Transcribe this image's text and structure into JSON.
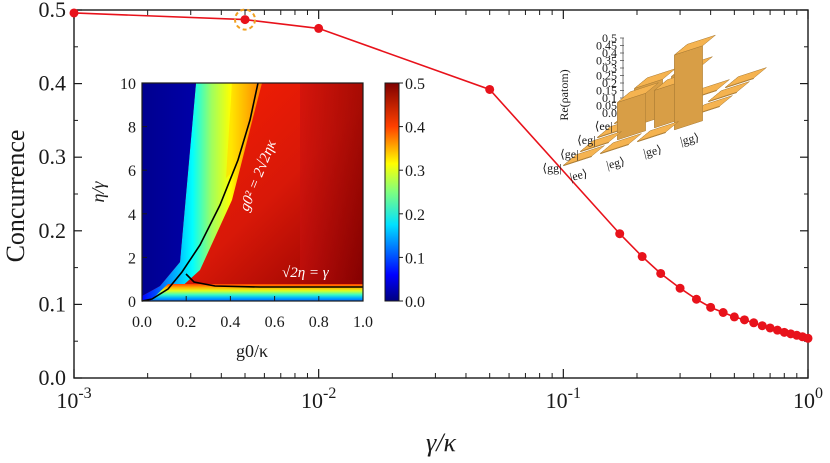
{
  "chart_data": [
    {
      "type": "line",
      "name": "main",
      "xscale": "log",
      "xlabel": "γ/κ",
      "ylabel": "Concurrence",
      "xlim": [
        0.001,
        1
      ],
      "ylim": [
        0,
        0.5
      ],
      "xticks": [
        "10^-3",
        "10^-2",
        "10^-1",
        "10^0"
      ],
      "yticks": [
        "0.0",
        "0.1",
        "0.2",
        "0.3",
        "0.4",
        "0.5"
      ],
      "line_color": "#e8121b",
      "highlight_color": "#f0a020",
      "highlight_index": 1,
      "series": [
        {
          "name": "concurrence",
          "x": [
            0.001,
            0.005,
            0.01,
            0.05,
            0.17,
            0.21,
            0.25,
            0.3,
            0.35,
            0.4,
            0.45,
            0.5,
            0.55,
            0.6,
            0.65,
            0.7,
            0.75,
            0.8,
            0.85,
            0.9,
            0.95,
            1.0
          ],
          "y": [
            0.496,
            0.487,
            0.475,
            0.392,
            0.196,
            0.165,
            0.142,
            0.122,
            0.107,
            0.096,
            0.089,
            0.083,
            0.079,
            0.075,
            0.071,
            0.068,
            0.065,
            0.062,
            0.06,
            0.058,
            0.056,
            0.054
          ]
        }
      ]
    },
    {
      "type": "heatmap",
      "name": "inset",
      "xlabel": "g0/κ",
      "ylabel": "η/γ",
      "xlim": [
        0,
        1
      ],
      "ylim": [
        0,
        10
      ],
      "xticks": [
        "0.0",
        "0.2",
        "0.4",
        "0.6",
        "0.8",
        "1.0"
      ],
      "yticks": [
        "0",
        "2",
        "4",
        "6",
        "8",
        "10"
      ],
      "colorbar_ticks": [
        "0.0",
        "0.1",
        "0.2",
        "0.3",
        "0.4",
        "0.5"
      ],
      "colorbar_range": [
        0,
        0.5
      ],
      "curve_labels": [
        "g0² = 2√2ηκ",
        "√2η = γ"
      ]
    },
    {
      "type": "bar3d",
      "name": "density-matrix",
      "zlabel": "Re(ρatom)",
      "zticks": [
        "0.0",
        "0.05",
        "0.1",
        "0.15",
        "0.2",
        "0.25",
        "0.3",
        "0.35",
        "0.4",
        "0.45",
        "0.5"
      ],
      "row_labels": [
        "⟨ee|",
        "⟨eg|",
        "⟨ge|",
        "⟨gg|"
      ],
      "col_labels": [
        "|ee⟩",
        "|eg⟩",
        "|ge⟩",
        "|gg⟩"
      ],
      "matrix": [
        [
          0.0,
          0.0,
          0.0,
          0.0
        ],
        [
          0.0,
          0.25,
          0.25,
          0.0
        ],
        [
          0.0,
          0.25,
          0.25,
          0.0
        ],
        [
          0.0,
          0.0,
          0.0,
          0.5
        ]
      ],
      "bar_color": "#e3a64a"
    }
  ]
}
